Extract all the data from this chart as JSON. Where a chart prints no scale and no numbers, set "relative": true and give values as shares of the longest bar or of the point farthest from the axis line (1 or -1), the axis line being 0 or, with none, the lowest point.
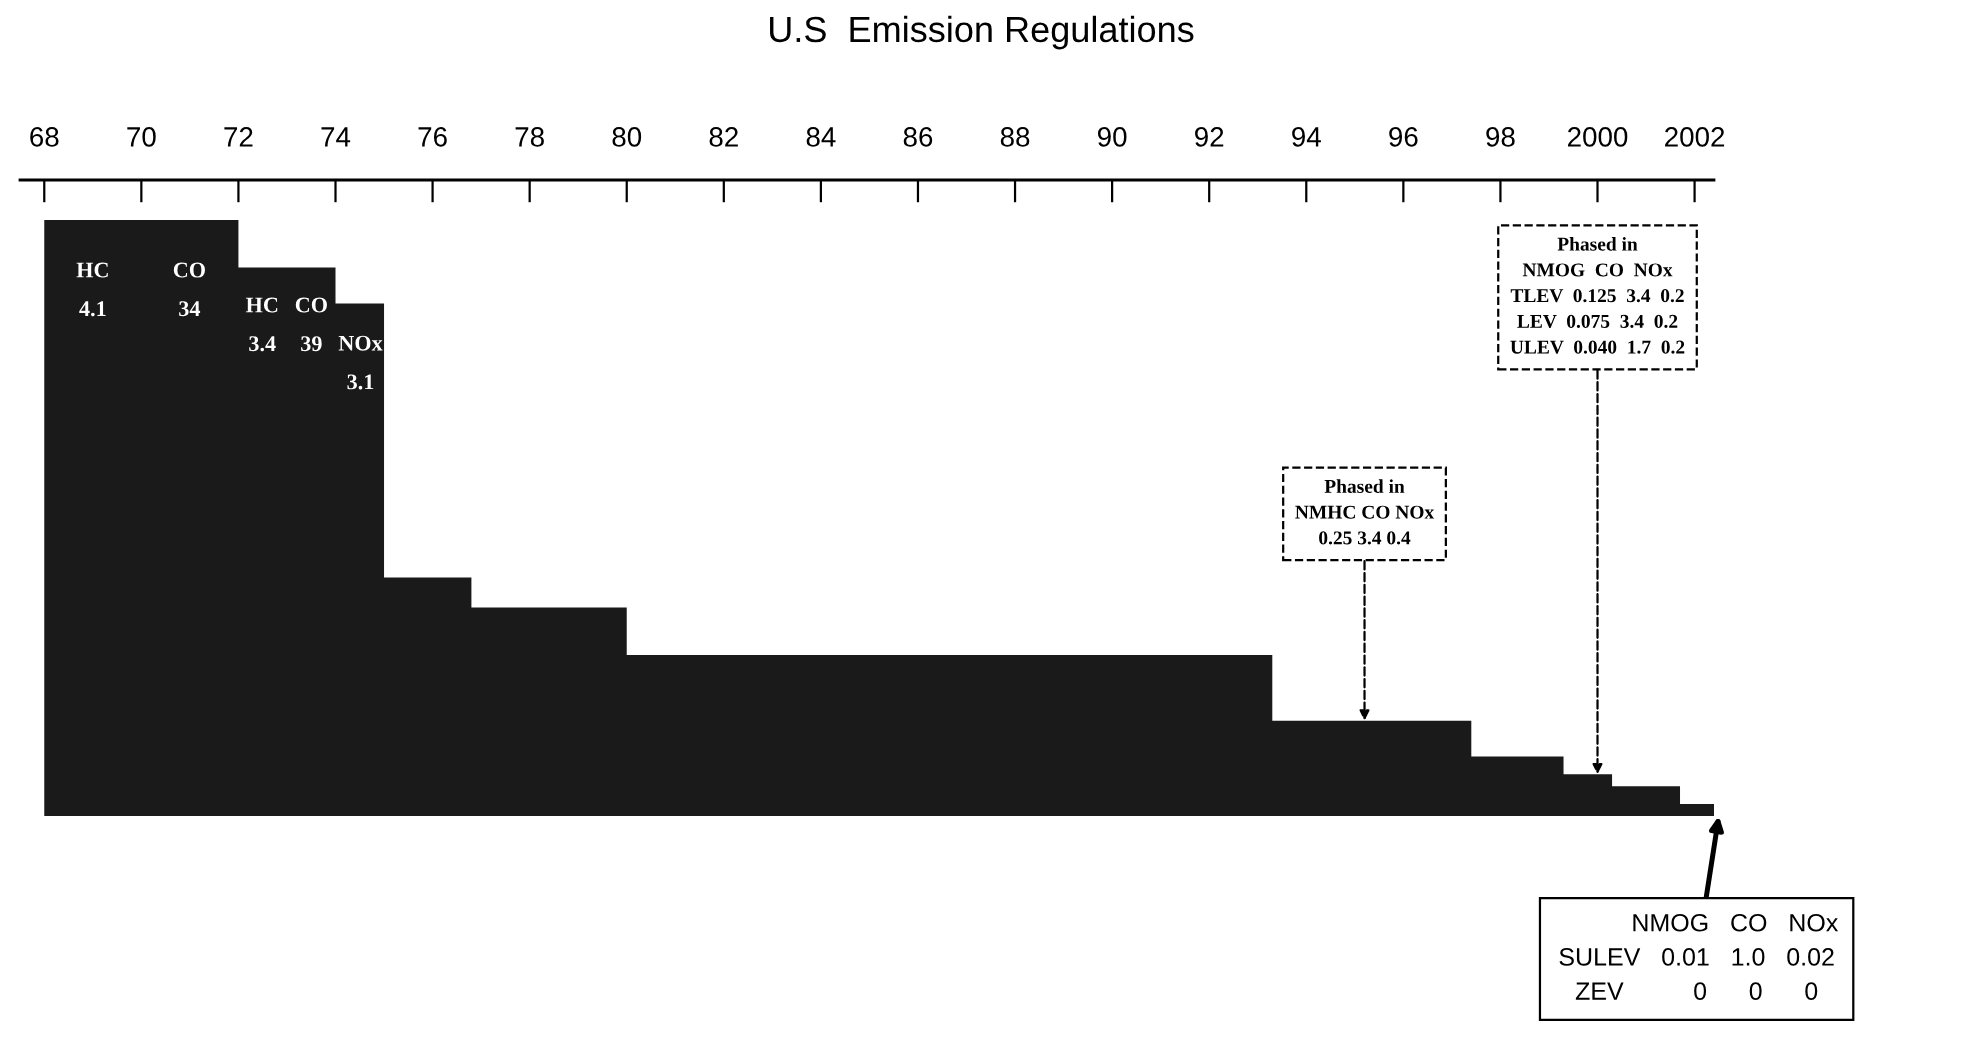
{
  "chart_data": {
    "type": "area",
    "title": "U.S  Emission Regulations",
    "relative": true,
    "series": [
      {
        "x": [
          1968,
          1972,
          1972,
          1974,
          1974,
          1975,
          1975,
          1976.8,
          1976.8,
          1980,
          1980,
          1993.3,
          1993.3,
          1997.4,
          1997.4,
          1999.3,
          1999.3,
          2000.3,
          2000.3,
          2001.7,
          2001.7,
          2002.4
        ],
        "values": [
          1,
          1,
          0.92,
          0.92,
          0.86,
          0.86,
          0.4,
          0.4,
          0.35,
          0.35,
          0.27,
          0.27,
          0.16,
          0.16,
          0.1,
          0.1,
          0.07,
          0.07,
          0.05,
          0.05,
          0.02,
          0.02
        ],
        "color": "#1a1a1a"
      }
    ],
    "xlim": [
      1967.5,
      2002.4
    ],
    "xticks": [
      {
        "value": 1968,
        "label": "68"
      },
      {
        "value": 1970,
        "label": "70"
      },
      {
        "value": 1972,
        "label": "72"
      },
      {
        "value": 1974,
        "label": "74"
      },
      {
        "value": 1976,
        "label": "76"
      },
      {
        "value": 1978,
        "label": "78"
      },
      {
        "value": 1980,
        "label": "80"
      },
      {
        "value": 1982,
        "label": "82"
      },
      {
        "value": 1984,
        "label": "84"
      },
      {
        "value": 1986,
        "label": "86"
      },
      {
        "value": 1988,
        "label": "88"
      },
      {
        "value": 1990,
        "label": "90"
      },
      {
        "value": 1992,
        "label": "92"
      },
      {
        "value": 1994,
        "label": "94"
      },
      {
        "value": 1996,
        "label": "96"
      },
      {
        "value": 1998,
        "label": "98"
      },
      {
        "value": 2000,
        "label": "2000"
      },
      {
        "value": 2002,
        "label": "2002"
      }
    ],
    "annotations": [
      "HC\n4.1",
      "CO\n34",
      "HC\n3.4",
      "CO\n39",
      "NOx\n3.1",
      {
        "text": "Phased in\nNMHC CO NOx\n0.25 3.4 0.4",
        "x": 1995.2,
        "y": 0.16
      },
      {
        "text": "Phased in\nNMOG  CO  NOx\nTLEV  0.125  3.4  0.2\nLEV  0.075  3.4  0.2\nULEV  0.040  1.7  0.2",
        "x": 2000.0,
        "y": 0.07
      },
      {
        "text": "           NMOG   CO   NOx\nSULEV   0.01   1.0   0.02\nZEV          0      0      0",
        "x": 2002.5,
        "y": 0
      }
    ]
  }
}
